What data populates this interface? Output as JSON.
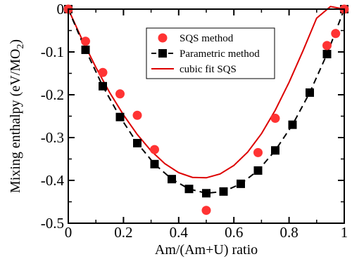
{
  "chart_data": {
    "type": "scatter",
    "xlabel": "Am/(Am+U) ratio",
    "ylabel_main": "Mixing enthalpy (eV/MO",
    "ylabel_sub": "2",
    "ylabel_close": ")",
    "xlim": [
      0,
      1
    ],
    "ylim": [
      -0.5,
      0
    ],
    "xticks": [
      0,
      0.2,
      0.4,
      0.6,
      0.8,
      1
    ],
    "xtick_labels": [
      "0",
      "0.2",
      "0.4",
      "0.6",
      "0.8",
      "1"
    ],
    "yticks": [
      0,
      -0.1,
      -0.2,
      -0.3,
      -0.4,
      -0.5
    ],
    "ytick_labels": [
      "0",
      "-0.1",
      "-0.2",
      "-0.3",
      "-0.4",
      "-0.5"
    ],
    "grid": false,
    "legend_position": "top-right",
    "series": [
      {
        "name": "SQS method",
        "style": "red-circles",
        "color": "#ff3333",
        "x": [
          0,
          0.0625,
          0.125,
          0.1875,
          0.25,
          0.3125,
          0.5,
          0.6875,
          0.75,
          0.9375,
          0.96875,
          1
        ],
        "y": [
          0,
          -0.075,
          -0.148,
          -0.198,
          -0.248,
          -0.328,
          -0.47,
          -0.335,
          -0.255,
          -0.085,
          -0.057,
          0
        ]
      },
      {
        "name": "Parametric method",
        "style": "black-squares-dashed",
        "color": "#000000",
        "x": [
          0,
          0.0625,
          0.125,
          0.1875,
          0.25,
          0.3125,
          0.375,
          0.4375,
          0.5,
          0.5625,
          0.625,
          0.6875,
          0.75,
          0.8125,
          0.875,
          0.9375,
          1
        ],
        "y": [
          0,
          -0.095,
          -0.18,
          -0.252,
          -0.313,
          -0.362,
          -0.397,
          -0.42,
          -0.43,
          -0.426,
          -0.408,
          -0.377,
          -0.33,
          -0.27,
          -0.195,
          -0.105,
          0
        ]
      },
      {
        "name": "cubic fit SQS",
        "style": "red-line",
        "color": "#dd0000",
        "x": [
          0,
          0.05,
          0.1,
          0.15,
          0.2,
          0.25,
          0.3,
          0.35,
          0.4,
          0.45,
          0.5,
          0.55,
          0.6,
          0.65,
          0.7,
          0.75,
          0.8,
          0.85,
          0.9,
          0.95,
          1
        ],
        "y": [
          0,
          -0.071,
          -0.136,
          -0.195,
          -0.247,
          -0.293,
          -0.331,
          -0.361,
          -0.382,
          -0.393,
          -0.394,
          -0.385,
          -0.365,
          -0.334,
          -0.291,
          -0.236,
          -0.171,
          -0.098,
          -0.021,
          0.006,
          0
        ]
      }
    ]
  }
}
